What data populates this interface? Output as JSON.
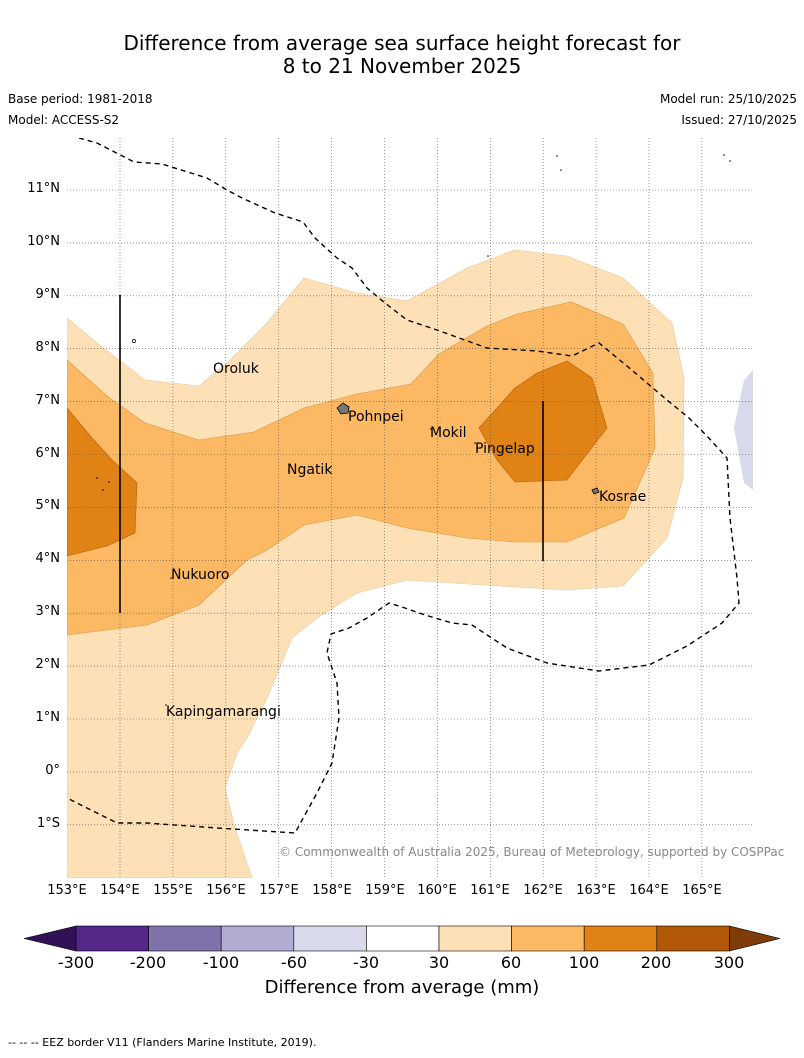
{
  "title": {
    "line1": "Difference from average sea surface height forecast for",
    "line2": "8 to 21 November 2025"
  },
  "meta": {
    "base_period": "Base period: 1981-2018",
    "model": "Model: ACCESS-S2",
    "model_run": "Model run: 25/10/2025",
    "issued": "Issued: 27/10/2025"
  },
  "axes": {
    "lat_labels": [
      "11°N",
      "10°N",
      "9°N",
      "8°N",
      "7°N",
      "6°N",
      "5°N",
      "4°N",
      "3°N",
      "2°N",
      "1°N",
      "0°",
      "1°S"
    ],
    "lon_labels": [
      "153°E",
      "154°E",
      "155°E",
      "156°E",
      "157°E",
      "158°E",
      "159°E",
      "160°E",
      "161°E",
      "162°E",
      "163°E",
      "164°E",
      "165°E"
    ]
  },
  "places": [
    {
      "name": "Oroluk"
    },
    {
      "name": "Pohnpei"
    },
    {
      "name": "Mokil"
    },
    {
      "name": "Pingelap"
    },
    {
      "name": "Ngatik"
    },
    {
      "name": "Kosrae"
    },
    {
      "name": "Nukuoro"
    },
    {
      "name": "Kapingamarangi"
    }
  ],
  "copyright": "© Commonwealth of Australia 2025, Bureau of Meteorology, supported by COSPPac",
  "colorbar": {
    "title": "Difference from average (mm)",
    "tick_labels": [
      "-300",
      "-200",
      "-100",
      "-60",
      "-30",
      "30",
      "60",
      "100",
      "200",
      "300"
    ],
    "colors": [
      "#321256",
      "#542788",
      "#8073ac",
      "#b2abd2",
      "#d8daeb",
      "#ffffff",
      "#fee0b6",
      "#fdb863",
      "#e08214",
      "#b35806",
      "#7f3b08"
    ]
  },
  "footer": "-- -- -- EEZ border V11 (Flanders Marine Institute, 2019)."
}
